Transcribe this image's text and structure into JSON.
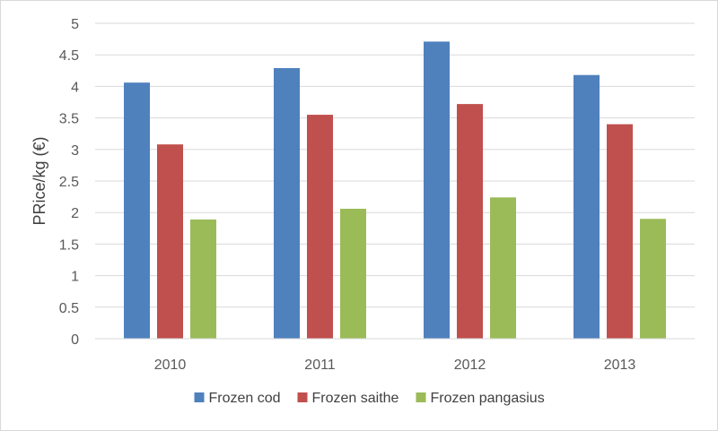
{
  "chart_data": {
    "type": "bar",
    "categories": [
      "2010",
      "2011",
      "2012",
      "2013"
    ],
    "series": [
      {
        "name": "Frozen cod",
        "color": "#4f81bd",
        "values": [
          4.06,
          4.29,
          4.71,
          4.18
        ]
      },
      {
        "name": "Frozen saithe",
        "color": "#c0504d",
        "values": [
          3.08,
          3.55,
          3.72,
          3.4
        ]
      },
      {
        "name": "Frozen pangasius",
        "color": "#9bbb59",
        "values": [
          1.89,
          2.06,
          2.24,
          1.9
        ]
      }
    ],
    "title": "",
    "xlabel": "",
    "ylabel": "PRice/kg (€)",
    "ylim": [
      0,
      5
    ],
    "yticks": [
      "0",
      "0.5",
      "1",
      "1.5",
      "2",
      "2.5",
      "3",
      "3.5",
      "4",
      "4.5",
      "5"
    ],
    "grid": true,
    "legend_position": "bottom"
  }
}
